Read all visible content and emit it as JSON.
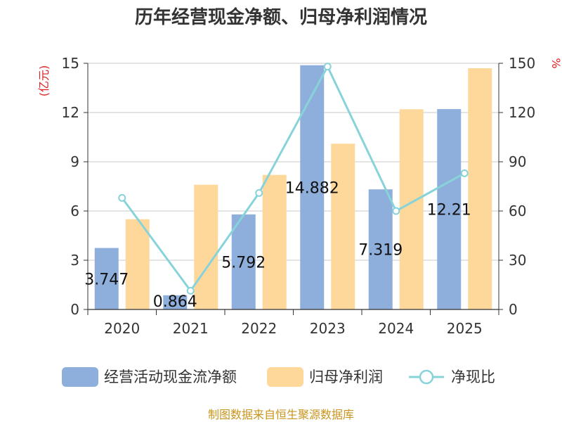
{
  "title": "历年经营现金净额、归母净利润情况",
  "source": "制图数据来自恒生聚源数据库",
  "left_unit": "(亿元)",
  "right_unit": "%",
  "colors": {
    "operating_cash": "#8eaedb",
    "net_profit": "#fdd89a",
    "ratio": "#88d3da"
  },
  "chart_data": {
    "type": "bar",
    "categories": [
      "2020",
      "2021",
      "2022",
      "2023",
      "2024",
      "2025"
    ],
    "series": [
      {
        "name": "经营活动现金流净额",
        "type": "bar",
        "axis": "left",
        "values": [
          3.747,
          0.864,
          5.792,
          14.882,
          7.319,
          12.21
        ]
      },
      {
        "name": "归母净利润",
        "type": "bar",
        "axis": "left",
        "values": [
          5.5,
          7.6,
          8.2,
          10.1,
          12.2,
          14.7
        ]
      },
      {
        "name": "净现比",
        "type": "line",
        "axis": "right",
        "values": [
          68,
          11.4,
          71,
          148,
          60,
          83
        ]
      }
    ],
    "data_labels": [
      "3.747",
      "0.864",
      "5.792",
      "14.882",
      "7.319",
      "12.21"
    ],
    "y_left": {
      "ticks": [
        "0",
        "3",
        "6",
        "9",
        "12",
        "15"
      ],
      "min": 0,
      "max": 15
    },
    "y_right": {
      "ticks": [
        "0",
        "30",
        "60",
        "90",
        "120",
        "150"
      ],
      "min": 0,
      "max": 150
    },
    "grid": true,
    "legend_position": "bottom"
  }
}
